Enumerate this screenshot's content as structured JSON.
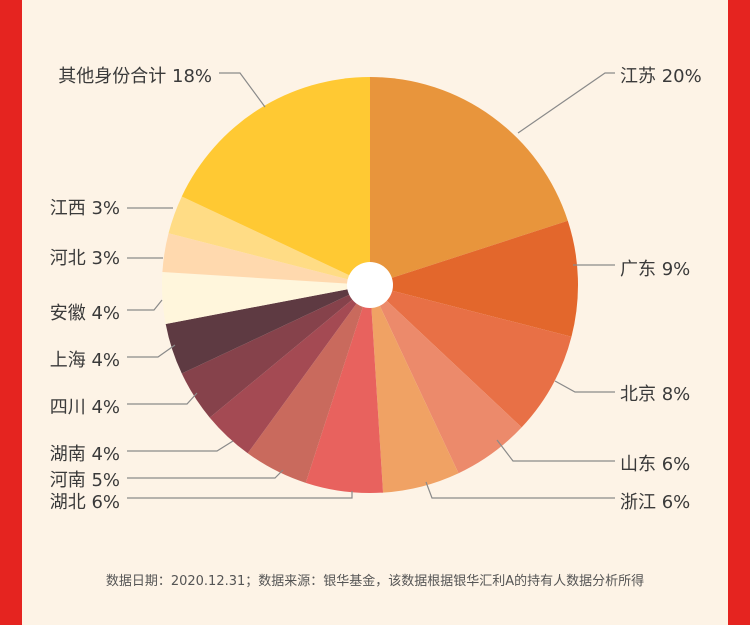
{
  "chart_data": {
    "type": "pie",
    "slices": [
      {
        "label": "江苏 20%",
        "name": "江苏",
        "value": 20,
        "color": "#e8953c"
      },
      {
        "label": "广东 9%",
        "name": "广东",
        "value": 9,
        "color": "#e3672c"
      },
      {
        "label": "北京 8%",
        "name": "北京",
        "value": 8,
        "color": "#e87046"
      },
      {
        "label": "山东 6%",
        "name": "山东",
        "value": 6,
        "color": "#ec8a6b"
      },
      {
        "label": "浙江 6%",
        "name": "浙江",
        "value": 6,
        "color": "#f0a264"
      },
      {
        "label": "湖北 6%",
        "name": "湖北",
        "value": 6,
        "color": "#e8625e"
      },
      {
        "label": "河南 5%",
        "name": "河南",
        "value": 5,
        "color": "#c96a5d"
      },
      {
        "label": "湖南 4%",
        "name": "湖南",
        "value": 4,
        "color": "#a44a53"
      },
      {
        "label": "四川 4%",
        "name": "四川",
        "value": 4,
        "color": "#86424b"
      },
      {
        "label": "上海 4%",
        "name": "上海",
        "value": 4,
        "color": "#5e3a42"
      },
      {
        "label": "安徽 4%",
        "name": "安徽",
        "value": 4,
        "color": "#fff6dc"
      },
      {
        "label": "河北 3%",
        "name": "河北",
        "value": 3,
        "color": "#ffd9ae"
      },
      {
        "label": "江西 3%",
        "name": "江西",
        "value": 3,
        "color": "#ffdc85"
      },
      {
        "label": "其他身份合计 18%",
        "name": "其他身份合计",
        "value": 18,
        "color": "#ffc933"
      }
    ],
    "legend_placement": "labels around pie with leader lines",
    "center_hole_color": "#ffffff",
    "leader_line_color": "#8a8a8a"
  },
  "footnote": "数据日期：2020.12.31；数据来源：银华基金，该数据根据银华汇利A的持有人数据分析所得",
  "frame_color": "#e52420",
  "background_color": "#fdf3e6"
}
